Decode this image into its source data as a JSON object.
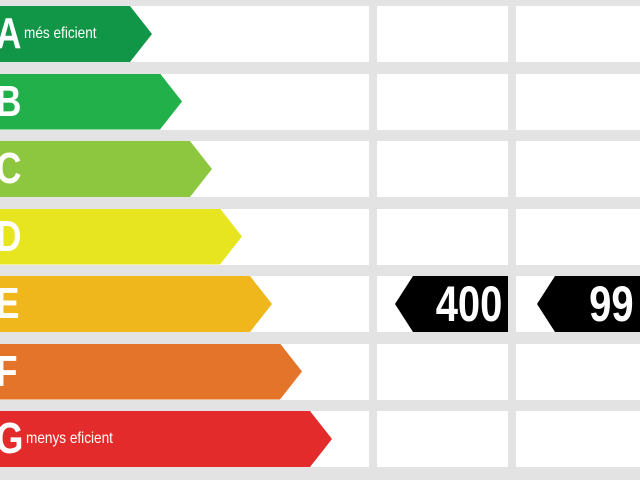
{
  "ratings": [
    {
      "letter": "A",
      "note": "més eficient",
      "color": "#119547"
    },
    {
      "letter": "B",
      "note": "",
      "color": "#22b04b"
    },
    {
      "letter": "C",
      "note": "",
      "color": "#8dc63f"
    },
    {
      "letter": "D",
      "note": "",
      "color": "#e6e51f"
    },
    {
      "letter": "E",
      "note": "",
      "color": "#f0b71c"
    },
    {
      "letter": "F",
      "note": "",
      "color": "#e3742a"
    },
    {
      "letter": "G",
      "note": "menys eficient",
      "color": "#e32b2b"
    }
  ],
  "indicators": {
    "rating": "E",
    "column1_value": "400",
    "column2_value": "99",
    "color": "#000000"
  }
}
